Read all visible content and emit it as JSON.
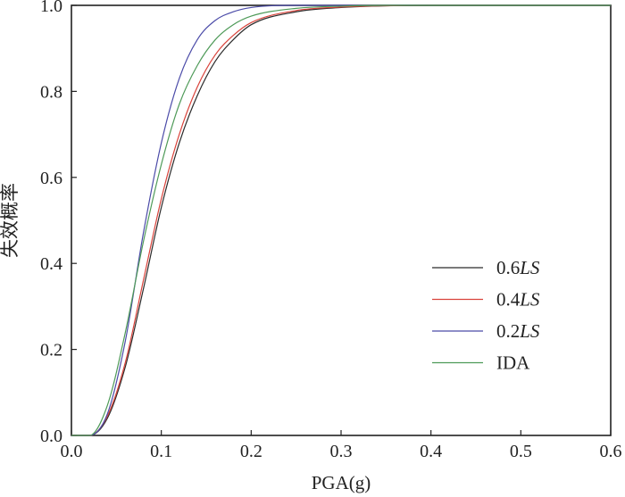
{
  "chart_data": {
    "type": "line",
    "xlabel": "PGA(g)",
    "ylabel": "失效概率",
    "xlim": [
      0.0,
      0.6
    ],
    "ylim": [
      0.0,
      1.0
    ],
    "x_ticks": [
      "0.0",
      "0.1",
      "0.2",
      "0.3",
      "0.4",
      "0.5",
      "0.6"
    ],
    "y_ticks": [
      "0.0",
      "0.2",
      "0.4",
      "0.6",
      "0.8",
      "1.0"
    ],
    "grid": false,
    "legend_position": "right",
    "x": [
      0.0,
      0.02,
      0.04,
      0.06,
      0.08,
      0.1,
      0.12,
      0.14,
      0.16,
      0.18,
      0.2,
      0.25,
      0.3,
      0.35,
      0.4,
      0.5,
      0.6
    ],
    "series": [
      {
        "name": "0.6LS",
        "legend_prefix": "0.6",
        "legend_italic": "LS",
        "color": "#2b2b2b",
        "values": [
          0.0,
          0.0,
          0.04,
          0.16,
          0.34,
          0.53,
          0.68,
          0.79,
          0.87,
          0.92,
          0.955,
          0.985,
          0.995,
          0.999,
          1.0,
          1.0,
          1.0
        ]
      },
      {
        "name": "0.4LS",
        "legend_prefix": "0.4",
        "legend_italic": "LS",
        "color": "#d9433b",
        "values": [
          0.0,
          0.0,
          0.045,
          0.17,
          0.36,
          0.55,
          0.7,
          0.81,
          0.885,
          0.93,
          0.96,
          0.988,
          0.996,
          0.999,
          1.0,
          1.0,
          1.0
        ]
      },
      {
        "name": "0.2LS",
        "legend_prefix": "0.2",
        "legend_italic": "LS",
        "color": "#4b4ba8",
        "values": [
          0.0,
          0.0,
          0.05,
          0.22,
          0.47,
          0.68,
          0.83,
          0.92,
          0.965,
          0.985,
          0.995,
          1.0,
          1.0,
          1.0,
          1.0,
          1.0,
          1.0
        ]
      },
      {
        "name": "IDA",
        "legend_prefix": "IDA",
        "legend_italic": "",
        "color": "#4e9a58",
        "values": [
          0.0,
          0.0,
          0.07,
          0.24,
          0.45,
          0.63,
          0.77,
          0.86,
          0.92,
          0.955,
          0.975,
          0.993,
          0.998,
          1.0,
          1.0,
          1.0,
          1.0
        ]
      }
    ]
  }
}
